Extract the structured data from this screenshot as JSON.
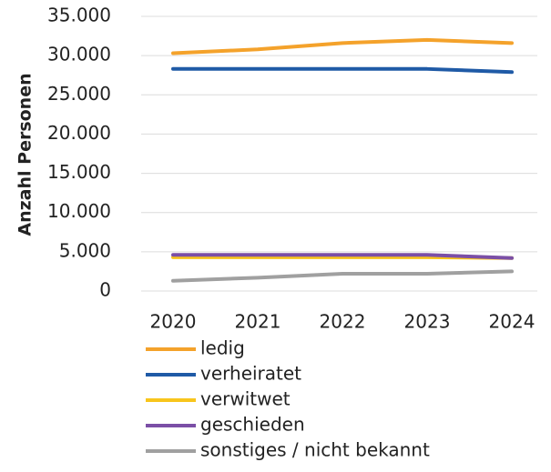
{
  "chart_data": {
    "type": "line",
    "y_label": "Anzahl Personen",
    "categories": [
      "2020",
      "2021",
      "2022",
      "2023",
      "2024"
    ],
    "series": [
      {
        "name": "ledig",
        "color": "#f4a22b",
        "values": [
          30300,
          30800,
          31600,
          32000,
          31600
        ]
      },
      {
        "name": "verheiratet",
        "color": "#1f5aa6",
        "values": [
          28300,
          28300,
          28300,
          28300,
          27900
        ]
      },
      {
        "name": "verwitwet",
        "color": "#f8c51c",
        "values": [
          4300,
          4300,
          4300,
          4300,
          4200
        ]
      },
      {
        "name": "geschieden",
        "color": "#7b4fa6",
        "values": [
          4600,
          4600,
          4600,
          4600,
          4200
        ]
      },
      {
        "name": "sonstiges / nicht bekannt",
        "color": "#a0a0a0",
        "values": [
          1300,
          1700,
          2200,
          2200,
          2500
        ]
      }
    ],
    "ylim": [
      0,
      35000
    ],
    "yticks": [
      0,
      {
        "value": 5000,
        "label": "5.000"
      },
      {
        "value": 10000,
        "label": "10.000"
      },
      {
        "value": 15000,
        "label": "15.000"
      },
      {
        "value": 20000,
        "label": "20.000"
      },
      {
        "value": 25000,
        "label": "25.000"
      },
      {
        "value": 30000,
        "label": "30.000"
      },
      {
        "value": 35000,
        "label": "35.000"
      }
    ],
    "grid": true,
    "legend": "bottom"
  }
}
